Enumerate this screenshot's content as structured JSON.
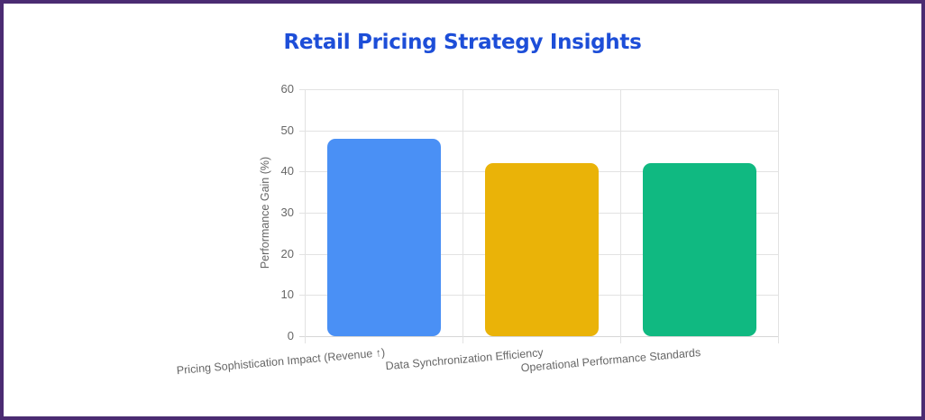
{
  "header": {
    "title": "Retail Pricing Strategy Insights"
  },
  "chart_data": {
    "type": "bar",
    "title": "Retail Pricing Strategy Insights",
    "xlabel": "",
    "ylabel": "Performance Gain (%)",
    "ylim": [
      0,
      60
    ],
    "yticks": [
      "60",
      "50",
      "40",
      "30",
      "20",
      "10",
      "0"
    ],
    "categories": [
      "Pricing Sophistication Impact (Revenue ↑)",
      "Data Synchronization Efficiency",
      "Operational Performance Standards"
    ],
    "values": [
      48,
      42,
      42
    ],
    "colors": [
      "#4a90f5",
      "#eab308",
      "#10b981"
    ],
    "grid": true,
    "legend": "none"
  },
  "colors": {
    "title": "#1d4ed8",
    "frame": "#4b2b72",
    "grid": "#e2e2e2",
    "text": "#666666"
  }
}
